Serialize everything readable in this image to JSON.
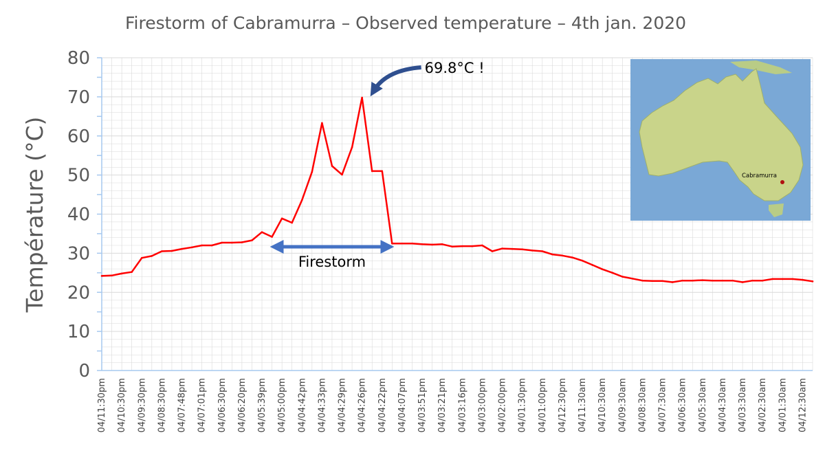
{
  "colors": {
    "series": "#ff0000",
    "arrow_blue": "#4472c4",
    "arrow_navy": "#2f4f8f",
    "grid": "#d9d9d9",
    "axis": "#a6c8ef",
    "ocean": "#7aa8d6",
    "land": "#c9d48a"
  },
  "chart_data": {
    "type": "line",
    "title": "Firestorm of Cabramurra – Observed temperature – 4th jan. 2020",
    "ylabel": "Température (°C)",
    "xlabel": "",
    "ylim": [
      0,
      80
    ],
    "yticks": [
      0,
      10,
      20,
      30,
      40,
      50,
      60,
      70,
      80
    ],
    "grid": true,
    "legend": "none",
    "x_tick_labels": [
      "04/11:30pm",
      "04/10:30pm",
      "04/09:30pm",
      "04/08:30pm",
      "04/07:48pm",
      "04/07:01pm",
      "04/06:30pm",
      "04/06:20pm",
      "04/05:39pm",
      "04/05:00pm",
      "04/04:42pm",
      "04/04:33pm",
      "04/04:29pm",
      "04/04:26pm",
      "04/04:22pm",
      "04/04:07pm",
      "04/03:51pm",
      "04/03:21pm",
      "04/03:16pm",
      "04/03:00pm",
      "04/02:00pm",
      "04/01:30pm",
      "04/01:00pm",
      "04/12:30pm",
      "04/11:30am",
      "04/10:30am",
      "04/09:30am",
      "04/08:30am",
      "04/07:30am",
      "04/06:30am",
      "04/05:30am",
      "04/04:30am",
      "04/03:30am",
      "04/02:30am",
      "04/01:30am",
      "04/12:30am"
    ],
    "series": [
      {
        "name": "Observed temperature",
        "values": [
          24.2,
          24.3,
          24.8,
          25.2,
          28.8,
          29.3,
          30.5,
          30.6,
          31.1,
          31.5,
          32,
          32,
          32.7,
          32.7,
          32.8,
          33.3,
          35.4,
          34.2,
          38.9,
          37.8,
          43.6,
          50.8,
          63.3,
          52.3,
          50.1,
          57.1,
          69.8,
          51,
          51,
          32.5,
          32.5,
          32.5,
          32.3,
          32.2,
          32.3,
          31.7,
          31.8,
          31.8,
          32,
          30.5,
          31.2,
          31.1,
          31,
          30.7,
          30.5,
          29.7,
          29.4,
          28.9,
          28.1,
          27,
          25.9,
          25,
          24,
          23.5,
          23,
          22.9,
          22.9,
          22.6,
          23,
          23,
          23.1,
          23,
          23,
          23,
          22.6,
          23,
          23,
          23.4,
          23.4,
          23.4,
          23.2,
          22.8
        ]
      }
    ],
    "annotations": {
      "peak_label": "69.8°C !",
      "peak_index": 26,
      "span_label": "Firestorm",
      "span_start_index": 17,
      "span_end_index": 29
    },
    "inset": {
      "place_label": "Cabramurra"
    }
  }
}
